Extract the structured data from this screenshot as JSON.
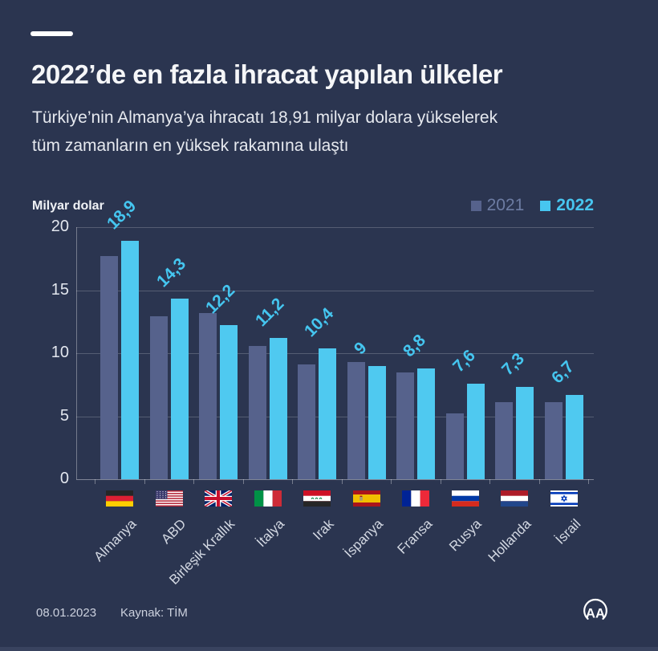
{
  "page": {
    "title": "2022’de en fazla ihracat yapılan ülkeler",
    "subtitle_lines": [
      "Türkiye’nin Almanya’ya ihracatı 18,91 milyar dolara yükselerek",
      "tüm zamanların en yüksek rakamına ulaştı"
    ],
    "background_color": "#2b3550"
  },
  "chart_data": {
    "type": "bar",
    "title": "2022’de en fazla ihracat yapılan ülkeler",
    "ylabel": "Milyar dolar",
    "xlabel": "",
    "categories": [
      "Almanya",
      "ABD",
      "Birleşik Krallık",
      "İtalya",
      "Irak",
      "İspanya",
      "Fransa",
      "Rusya",
      "Hollanda",
      "İsrail"
    ],
    "flag_icons": [
      "germany-flag-icon",
      "usa-flag-icon",
      "uk-flag-icon",
      "italy-flag-icon",
      "iraq-flag-icon",
      "spain-flag-icon",
      "france-flag-icon",
      "russia-flag-icon",
      "netherlands-flag-icon",
      "israel-flag-icon"
    ],
    "flags": [
      "germany",
      "usa",
      "uk",
      "italy",
      "iraq",
      "spain",
      "france",
      "russia",
      "netherlands",
      "israel"
    ],
    "series": [
      {
        "name": "2021",
        "color": "#56628c",
        "values": [
          17.7,
          12.9,
          13.2,
          10.6,
          9.1,
          9.3,
          8.5,
          5.2,
          6.1,
          6.1
        ],
        "show_value_labels": false
      },
      {
        "name": "2022",
        "color": "#4fc9f0",
        "values": [
          18.9,
          14.3,
          12.2,
          11.2,
          10.4,
          9,
          8.8,
          7.6,
          7.3,
          6.7
        ],
        "show_value_labels": true,
        "value_labels": [
          "18,9",
          "14,3",
          "12,2",
          "11,2",
          "10,4",
          "9",
          "8,8",
          "7,6",
          "7,3",
          "6,7"
        ]
      }
    ],
    "ylim": [
      0,
      20
    ],
    "yticks": [
      0,
      5,
      10,
      15,
      20
    ],
    "grid": "horizontal",
    "legend_position": "top-right"
  },
  "legend": {
    "items": [
      {
        "label": "2021",
        "swatch_color": "#56628c"
      },
      {
        "label": "2022",
        "swatch_color": "#47c6f0"
      }
    ]
  },
  "footer": {
    "date": "08.01.2023",
    "source": "Kaynak: TİM",
    "logo": "anadolu-agency-logo"
  }
}
